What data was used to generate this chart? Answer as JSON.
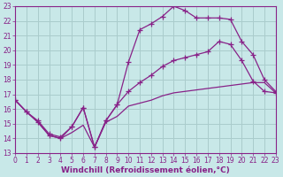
{
  "bg_color": "#c8e8e8",
  "line_color": "#882288",
  "grid_color": "#aacccc",
  "xlim": [
    0,
    23
  ],
  "ylim": [
    13,
    23
  ],
  "xticks": [
    0,
    1,
    2,
    3,
    4,
    5,
    6,
    7,
    8,
    9,
    10,
    11,
    12,
    13,
    14,
    15,
    16,
    17,
    18,
    19,
    20,
    21,
    22,
    23
  ],
  "yticks": [
    13,
    14,
    15,
    16,
    17,
    18,
    19,
    20,
    21,
    22,
    23
  ],
  "line1_x": [
    0,
    1,
    2,
    3,
    4,
    5,
    6,
    7,
    8,
    9,
    10,
    11,
    12,
    13,
    14,
    15,
    16,
    17,
    18,
    19,
    20,
    21,
    22,
    23
  ],
  "line1_y": [
    16.6,
    15.8,
    15.1,
    14.2,
    14.0,
    14.4,
    14.9,
    13.4,
    15.1,
    15.5,
    16.2,
    16.4,
    16.6,
    16.9,
    17.1,
    17.2,
    17.3,
    17.4,
    17.5,
    17.6,
    17.7,
    17.8,
    17.8,
    17.1
  ],
  "line2_x": [
    0,
    1,
    2,
    3,
    4,
    5,
    6,
    7,
    8,
    9,
    10,
    11,
    12,
    13,
    14,
    15,
    16,
    17,
    18,
    19,
    20,
    21,
    22,
    23
  ],
  "line2_y": [
    16.6,
    15.8,
    15.1,
    14.2,
    14.0,
    14.8,
    16.1,
    13.4,
    15.2,
    16.3,
    19.2,
    21.4,
    21.8,
    22.3,
    23.0,
    22.7,
    22.2,
    22.2,
    22.2,
    22.1,
    20.6,
    19.7,
    18.0,
    17.2
  ],
  "line3_x": [
    0,
    1,
    2,
    3,
    4,
    5,
    6,
    7,
    8,
    9,
    10,
    11,
    12,
    13,
    14,
    15,
    16,
    17,
    18,
    19,
    20,
    21,
    22,
    23
  ],
  "line3_y": [
    16.6,
    15.8,
    15.2,
    14.3,
    14.1,
    14.8,
    16.1,
    13.4,
    15.2,
    16.3,
    17.2,
    17.8,
    18.3,
    18.9,
    19.3,
    19.5,
    19.7,
    19.9,
    20.6,
    20.4,
    19.3,
    17.9,
    17.2,
    17.1
  ],
  "xlabel": "Windchill (Refroidissement éolien,°C)",
  "tick_fontsize": 5.5,
  "xlabel_fontsize": 6.5
}
